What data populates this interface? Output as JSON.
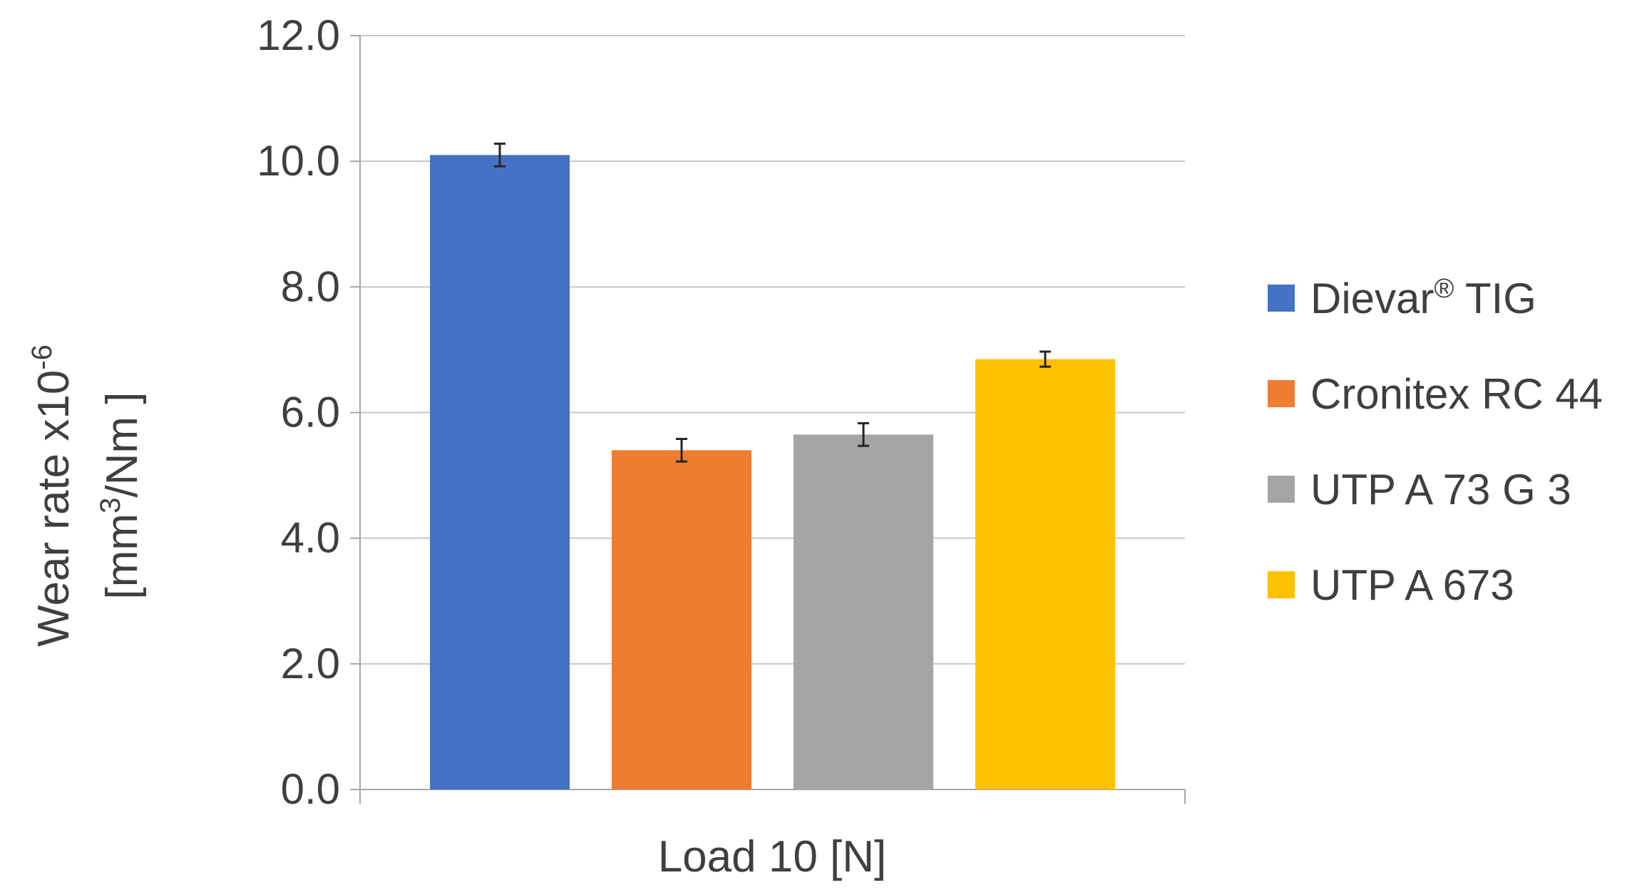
{
  "chart_data": {
    "type": "bar",
    "title": "",
    "xlabel": "Load 10 [N]",
    "ylabel_line1": "Wear rate x10",
    "ylabel_exp1": "-6",
    "ylabel_line2_pre": "[mm",
    "ylabel_exp2": "3",
    "ylabel_line2_post": "/Nm ]",
    "ylim": [
      0,
      12
    ],
    "yticks": [
      "0.0",
      "2.0",
      "4.0",
      "6.0",
      "8.0",
      "10.0",
      "12.0"
    ],
    "ytick_values": [
      0,
      2,
      4,
      6,
      8,
      10,
      12
    ],
    "grid": true,
    "legend_position": "right",
    "series": [
      {
        "name": "Dievar",
        "name_mark": "®",
        "name_suffix": " TIG",
        "value": 10.1,
        "error": 0.18,
        "color": "#4472C4"
      },
      {
        "name": "Cronitex RC 44",
        "name_mark": "",
        "name_suffix": "",
        "value": 5.4,
        "error": 0.18,
        "color": "#ED7D31"
      },
      {
        "name": "UTP A 73 G 3",
        "name_mark": "",
        "name_suffix": "",
        "value": 5.65,
        "error": 0.18,
        "color": "#A5A5A5"
      },
      {
        "name": "UTP A 673",
        "name_mark": "",
        "name_suffix": "",
        "value": 6.85,
        "error": 0.12,
        "color": "#FFC000"
      }
    ]
  }
}
